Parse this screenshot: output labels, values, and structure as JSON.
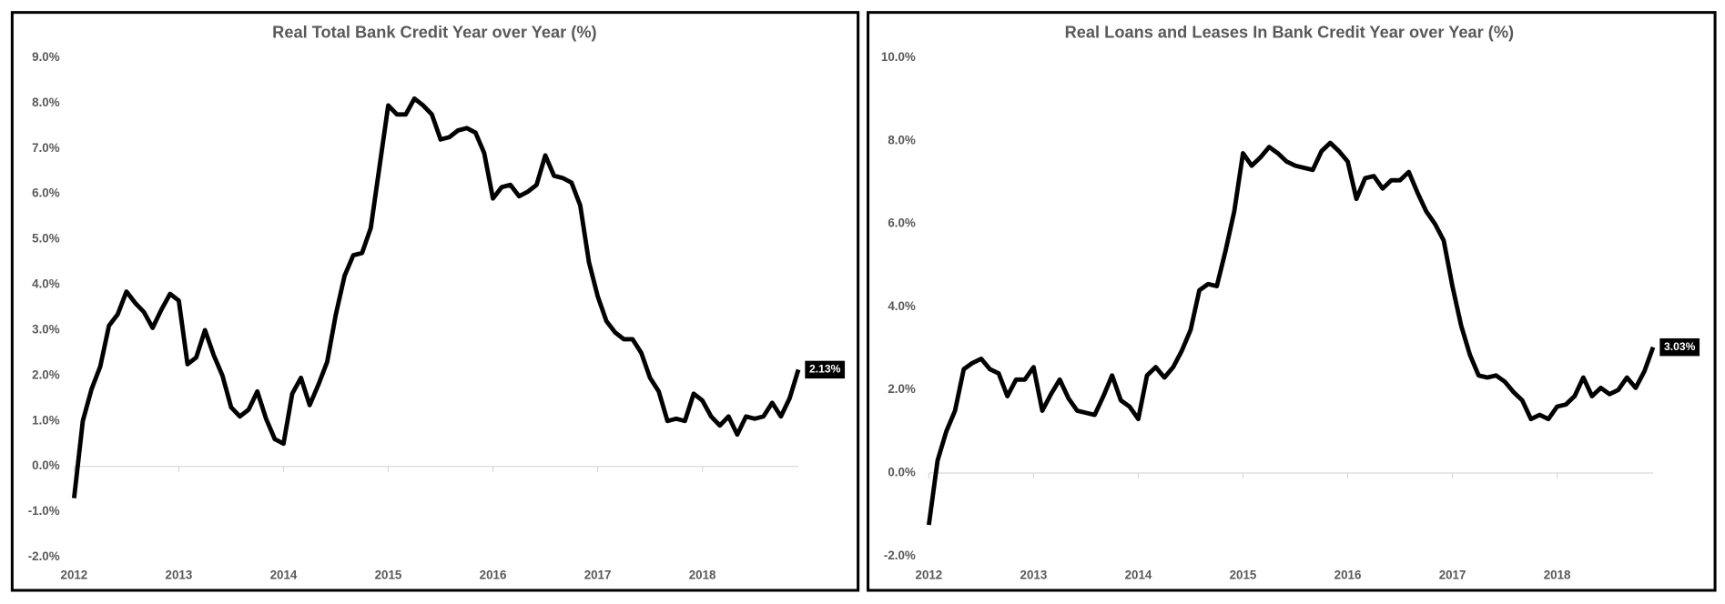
{
  "chart_data": [
    {
      "type": "line",
      "title": "Real Total Bank Credit Year over Year (%)",
      "categories": [
        "2012",
        null,
        null,
        null,
        null,
        null,
        null,
        null,
        null,
        null,
        null,
        null,
        "2013",
        null,
        null,
        null,
        null,
        null,
        null,
        null,
        null,
        null,
        null,
        null,
        "2014",
        null,
        null,
        null,
        null,
        null,
        null,
        null,
        null,
        null,
        null,
        null,
        "2015",
        null,
        null,
        null,
        null,
        null,
        null,
        null,
        null,
        null,
        null,
        null,
        "2016",
        null,
        null,
        null,
        null,
        null,
        null,
        null,
        null,
        null,
        null,
        null,
        "2017",
        null,
        null,
        null,
        null,
        null,
        null,
        null,
        null,
        null,
        null,
        null,
        "2018",
        null,
        null,
        null,
        null,
        null,
        null,
        null,
        null,
        null,
        null,
        null
      ],
      "series": [
        {
          "color": "#000000",
          "values": [
            -0.7,
            1.0,
            1.7,
            2.2,
            3.1,
            3.35,
            3.85,
            3.6,
            3.4,
            3.05,
            3.45,
            3.8,
            3.65,
            2.25,
            2.4,
            3.0,
            2.45,
            2.0,
            1.3,
            1.1,
            1.25,
            1.65,
            1.05,
            0.6,
            0.5,
            1.6,
            1.95,
            1.35,
            1.8,
            2.3,
            3.35,
            4.2,
            4.65,
            4.7,
            5.25,
            6.6,
            7.95,
            7.75,
            7.75,
            8.1,
            7.95,
            7.75,
            7.2,
            7.25,
            7.4,
            7.45,
            7.35,
            6.9,
            5.9,
            6.15,
            6.2,
            5.95,
            6.05,
            6.2,
            6.85,
            6.4,
            6.35,
            6.25,
            5.75,
            4.5,
            3.75,
            3.2,
            2.95,
            2.8,
            2.8,
            2.5,
            1.95,
            1.65,
            1.0,
            1.05,
            1.0,
            1.6,
            1.45,
            1.1,
            0.9,
            1.1,
            0.7,
            1.1,
            1.05,
            1.1,
            1.4,
            1.1,
            1.5,
            2.13
          ],
          "value_labels": [
            null,
            null,
            null,
            null,
            null,
            null,
            null,
            null,
            null,
            null,
            null,
            null,
            null,
            null,
            null,
            null,
            null,
            null,
            null,
            null,
            null,
            null,
            null,
            null,
            null,
            null,
            null,
            null,
            null,
            null,
            null,
            null,
            null,
            null,
            null,
            null,
            null,
            null,
            null,
            null,
            null,
            null,
            null,
            null,
            null,
            null,
            null,
            null,
            null,
            null,
            null,
            null,
            null,
            null,
            null,
            null,
            null,
            null,
            null,
            null,
            null,
            null,
            null,
            null,
            null,
            null,
            null,
            null,
            null,
            null,
            null,
            null,
            null,
            null,
            null,
            null,
            null,
            null,
            null,
            null,
            null,
            null,
            null,
            "2.13%"
          ]
        }
      ],
      "ylim": [
        -2,
        9
      ],
      "yticks": [
        {
          "value": -2,
          "label": "-2.0%"
        },
        {
          "value": -1,
          "label": "-1.0%"
        },
        {
          "value": 0,
          "label": "0.0%"
        },
        {
          "value": 1,
          "label": "1.0%"
        },
        {
          "value": 2,
          "label": "2.0%"
        },
        {
          "value": 3,
          "label": "3.0%"
        },
        {
          "value": 4,
          "label": "4.0%"
        },
        {
          "value": 5,
          "label": "5.0%"
        },
        {
          "value": 6,
          "label": "6.0%"
        },
        {
          "value": 7,
          "label": "7.0%"
        },
        {
          "value": 8,
          "label": "8.0%"
        },
        {
          "value": 9,
          "label": "9.0%"
        }
      ]
    },
    {
      "type": "line",
      "title": "Real Loans and Leases In Bank Credit Year over Year (%)",
      "categories": [
        "2012",
        null,
        null,
        null,
        null,
        null,
        null,
        null,
        null,
        null,
        null,
        null,
        "2013",
        null,
        null,
        null,
        null,
        null,
        null,
        null,
        null,
        null,
        null,
        null,
        "2014",
        null,
        null,
        null,
        null,
        null,
        null,
        null,
        null,
        null,
        null,
        null,
        "2015",
        null,
        null,
        null,
        null,
        null,
        null,
        null,
        null,
        null,
        null,
        null,
        "2016",
        null,
        null,
        null,
        null,
        null,
        null,
        null,
        null,
        null,
        null,
        null,
        "2017",
        null,
        null,
        null,
        null,
        null,
        null,
        null,
        null,
        null,
        null,
        null,
        "2018",
        null,
        null,
        null,
        null,
        null,
        null,
        null,
        null,
        null,
        null,
        null
      ],
      "series": [
        {
          "color": "#000000",
          "values": [
            -1.25,
            0.3,
            1.0,
            1.5,
            2.5,
            2.65,
            2.75,
            2.5,
            2.4,
            1.85,
            2.25,
            2.25,
            2.55,
            1.5,
            1.9,
            2.25,
            1.8,
            1.5,
            1.45,
            1.4,
            1.85,
            2.35,
            1.75,
            1.6,
            1.3,
            2.35,
            2.55,
            2.3,
            2.55,
            2.95,
            3.45,
            4.4,
            4.55,
            4.5,
            5.35,
            6.3,
            7.7,
            7.4,
            7.6,
            7.85,
            7.7,
            7.5,
            7.4,
            7.35,
            7.3,
            7.75,
            7.95,
            7.75,
            7.5,
            6.6,
            7.1,
            7.15,
            6.85,
            7.05,
            7.05,
            7.25,
            6.75,
            6.3,
            6.0,
            5.6,
            4.5,
            3.55,
            2.85,
            2.35,
            2.3,
            2.35,
            2.2,
            1.95,
            1.75,
            1.3,
            1.4,
            1.3,
            1.6,
            1.65,
            1.85,
            2.3,
            1.85,
            2.05,
            1.9,
            2.0,
            2.3,
            2.05,
            2.45,
            3.03
          ],
          "value_labels": [
            null,
            null,
            null,
            null,
            null,
            null,
            null,
            null,
            null,
            null,
            null,
            null,
            null,
            null,
            null,
            null,
            null,
            null,
            null,
            null,
            null,
            null,
            null,
            null,
            null,
            null,
            null,
            null,
            null,
            null,
            null,
            null,
            null,
            null,
            null,
            null,
            null,
            null,
            null,
            null,
            null,
            null,
            null,
            null,
            null,
            null,
            null,
            null,
            null,
            null,
            null,
            null,
            null,
            null,
            null,
            null,
            null,
            null,
            null,
            null,
            null,
            null,
            null,
            null,
            null,
            null,
            null,
            null,
            null,
            null,
            null,
            null,
            null,
            null,
            null,
            null,
            null,
            null,
            null,
            null,
            null,
            null,
            null,
            "3.03%"
          ]
        }
      ],
      "ylim": [
        -2,
        10
      ],
      "yticks": [
        {
          "value": -2,
          "label": "-2.0%"
        },
        {
          "value": 0,
          "label": "0.0%"
        },
        {
          "value": 2,
          "label": "2.0%"
        },
        {
          "value": 4,
          "label": "4.0%"
        },
        {
          "value": 6,
          "label": "6.0%"
        },
        {
          "value": 8,
          "label": "8.0%"
        },
        {
          "value": 10,
          "label": "10.0%"
        }
      ]
    }
  ]
}
